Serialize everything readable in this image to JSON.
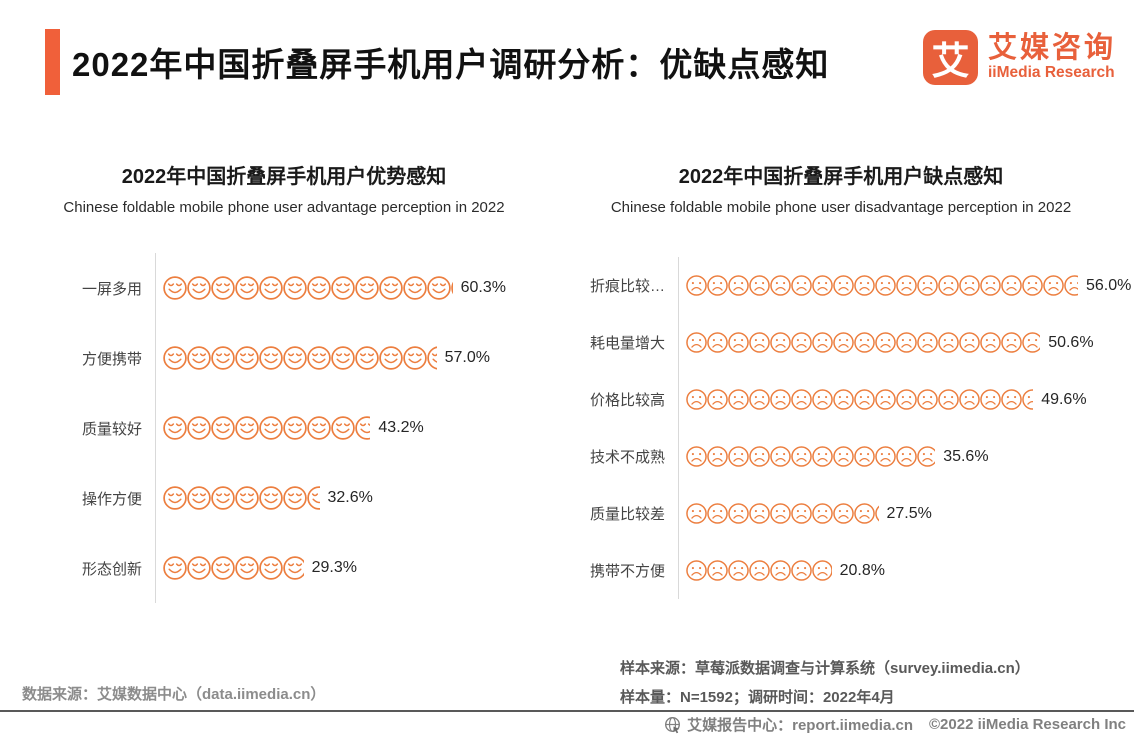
{
  "header": {
    "title": "2022年中国折叠屏手机用户调研分析：优缺点感知",
    "logo": {
      "glyph": "艾",
      "name_cn": "艾媒咨询",
      "name_en": "iiMedia Research"
    },
    "accent_color": "#F0603A"
  },
  "chart_data": [
    {
      "type": "bar",
      "variant": "pictogram",
      "icon": "smiley-face",
      "icon_color": "#EC7E3F",
      "icon_size_px": 24,
      "unit_percent_per_icon": 5,
      "title": "2022年中国折叠屏手机用户优势感知",
      "subtitle": "Chinese foldable mobile phone user advantage perception in 2022",
      "categories": [
        "一屏多用",
        "方便携带",
        "质量较好",
        "操作方便",
        "形态创新"
      ],
      "values": [
        60.3,
        57.0,
        43.2,
        32.6,
        29.3
      ],
      "value_labels": [
        "60.3%",
        "57.0%",
        "43.2%",
        "32.6%",
        "29.3%"
      ],
      "xlim": [
        0,
        100
      ],
      "grid": false,
      "legend": false
    },
    {
      "type": "bar",
      "variant": "pictogram",
      "icon": "frowny-face",
      "icon_color": "#EC7E3F",
      "icon_size_px": 21,
      "unit_percent_per_icon": 3,
      "title": "2022年中国折叠屏手机用户缺点感知",
      "subtitle": "Chinese foldable mobile phone user disadvantage perception in 2022",
      "categories": [
        "折痕比较…",
        "耗电量增大",
        "价格比较高",
        "技术不成熟",
        "质量比较差",
        "携带不方便"
      ],
      "values": [
        56.0,
        50.6,
        49.6,
        35.6,
        27.5,
        20.8
      ],
      "value_labels": [
        "56.0%",
        "50.6%",
        "49.6%",
        "35.6%",
        "27.5%",
        "20.8%"
      ],
      "xlim": [
        0,
        100
      ],
      "grid": false,
      "legend": false
    }
  ],
  "footer": {
    "left_source": "数据来源：艾媒数据中心（data.iimedia.cn）",
    "sample_source": "样本来源：草莓派数据调查与计算系统（survey.iimedia.cn）",
    "sample_size": "样本量：N=1592；调研时间：2022年4月",
    "report_center": "艾媒报告中心：report.iimedia.cn",
    "copyright": "©2022 iiMedia Research Inc"
  }
}
